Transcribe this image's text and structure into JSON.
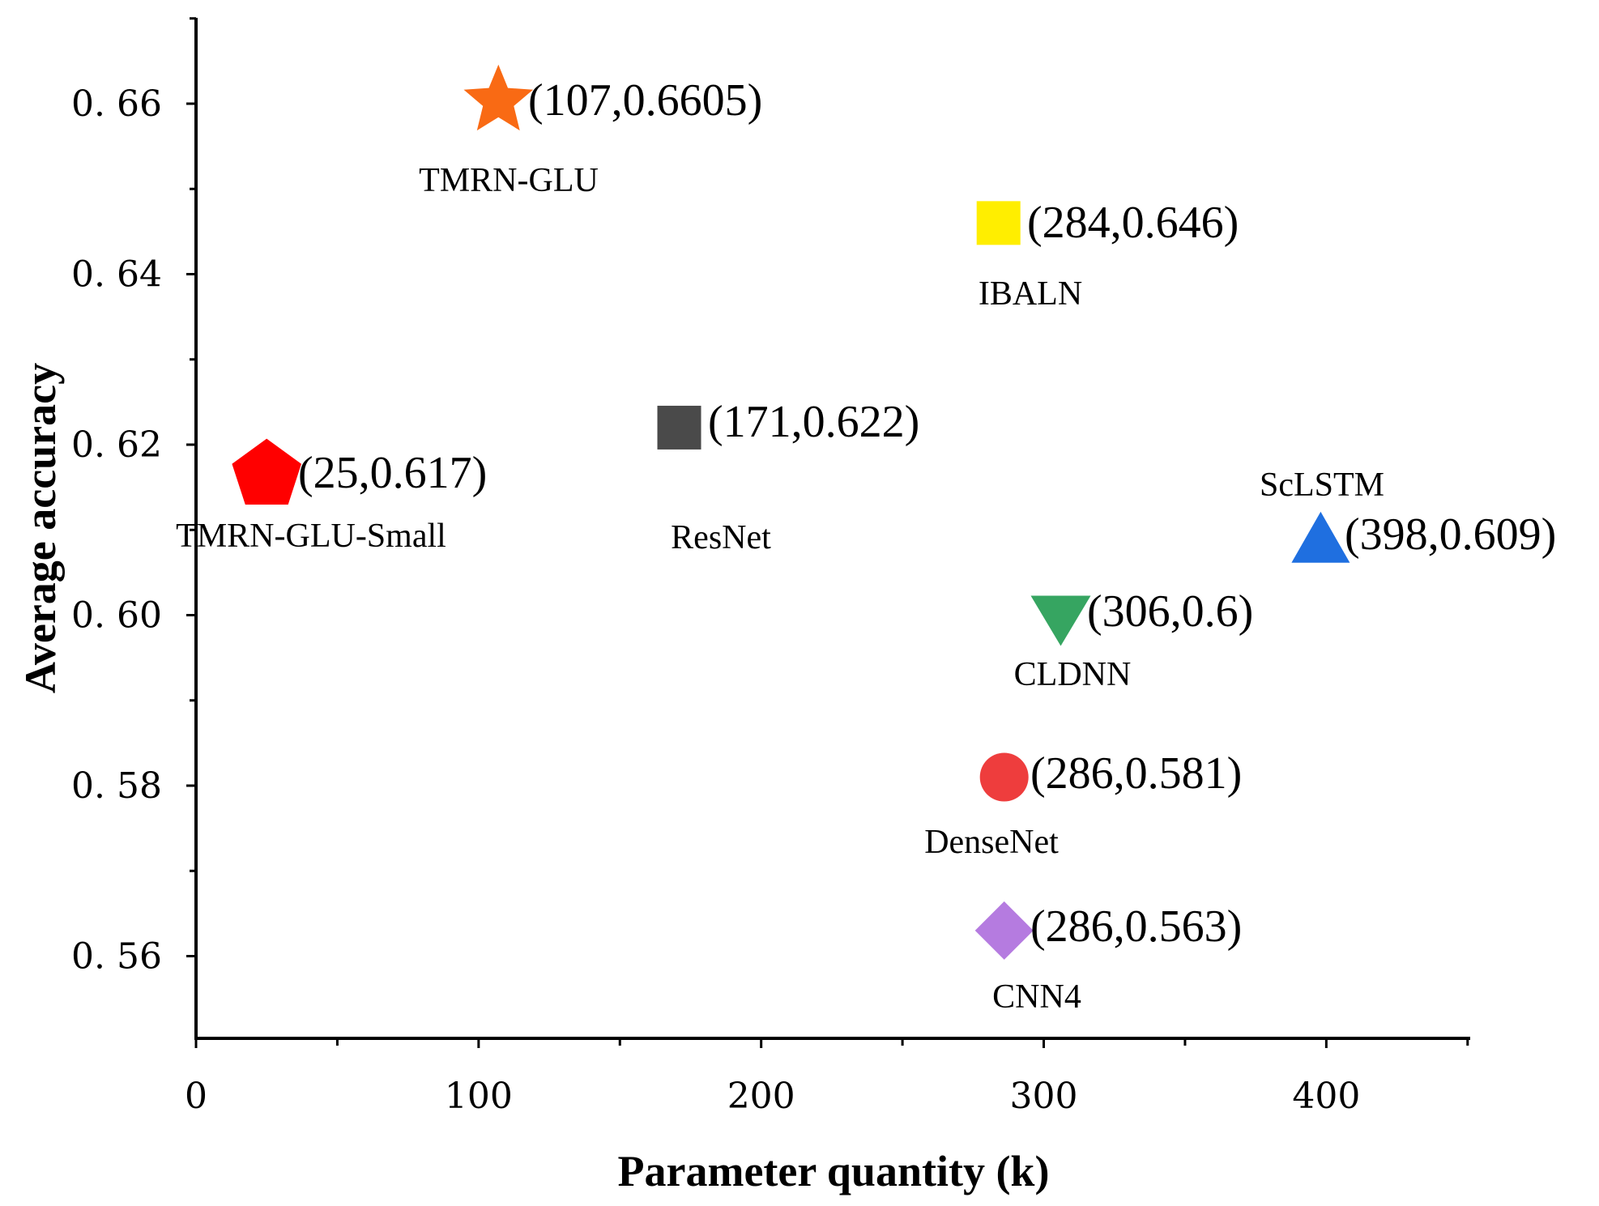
{
  "chart_data": {
    "type": "scatter",
    "title": "",
    "xlabel": "Parameter quantity (k)",
    "ylabel": "Average accuracy",
    "xlim": [
      0,
      450
    ],
    "ylim": [
      0.55,
      0.67
    ],
    "x_ticks": [
      0,
      100,
      200,
      300,
      400
    ],
    "x_tick_labels": [
      "0",
      "100",
      "200",
      "300",
      "400"
    ],
    "y_ticks": [
      0.56,
      0.58,
      0.6,
      0.62,
      0.64,
      0.66
    ],
    "y_tick_labels": [
      "0. 56",
      "0. 58",
      "0. 60",
      "0. 62",
      "0. 64",
      "0. 66"
    ],
    "grid": false,
    "points": [
      {
        "name": "TMRN-GLU",
        "x": 107,
        "y": 0.6605,
        "label": "(107,0.6605)",
        "marker": "star",
        "color": "#f96a14"
      },
      {
        "name": "IBALN",
        "x": 284,
        "y": 0.646,
        "label": "(284,0.646)",
        "marker": "square",
        "color": "#ffee00"
      },
      {
        "name": "ResNet",
        "x": 171,
        "y": 0.622,
        "label": "(171,0.622)",
        "marker": "square",
        "color": "#4a4a4a"
      },
      {
        "name": "TMRN-GLU-Small",
        "x": 25,
        "y": 0.617,
        "label": "(25,0.617)",
        "marker": "pentagon",
        "color": "#ff0000"
      },
      {
        "name": "ScLSTM",
        "x": 398,
        "y": 0.609,
        "label": "(398,0.609)",
        "marker": "triangle-up",
        "color": "#1f6fe0"
      },
      {
        "name": "CLDNN",
        "x": 306,
        "y": 0.6,
        "label": "(306,0.6)",
        "marker": "triangle-down",
        "color": "#36a561"
      },
      {
        "name": "DenseNet",
        "x": 286,
        "y": 0.581,
        "label": "(286,0.581)",
        "marker": "circle",
        "color": "#ee3d3d"
      },
      {
        "name": "CNN4",
        "x": 286,
        "y": 0.563,
        "label": "(286,0.563)",
        "marker": "diamond",
        "color": "#b57be0"
      }
    ]
  }
}
